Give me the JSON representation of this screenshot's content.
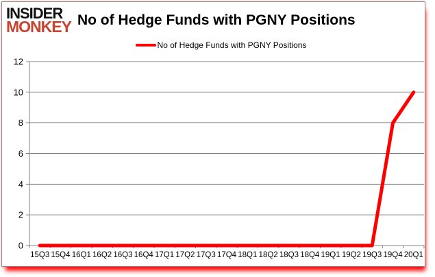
{
  "brand": {
    "line1": "INSIDER",
    "line2": "MONKEY",
    "line1_color": "#111111",
    "line2_color": "#c8432f"
  },
  "header": {
    "title": "No of Hedge Funds with PGNY Positions"
  },
  "legend": {
    "label": "No of Hedge Funds with PGNY Positions",
    "line_color": "#ff0000"
  },
  "chart_data": {
    "type": "line",
    "title": "No of Hedge Funds with PGNY Positions",
    "categories": [
      "15Q3",
      "15Q4",
      "16Q1",
      "16Q2",
      "16Q3",
      "16Q4",
      "17Q1",
      "17Q2",
      "17Q3",
      "17Q4",
      "18Q1",
      "18Q2",
      "18Q3",
      "18Q4",
      "19Q1",
      "19Q2",
      "19Q3",
      "19Q4",
      "20Q1"
    ],
    "series": [
      {
        "name": "No of Hedge Funds with PGNY Positions",
        "color": "#ff0000",
        "values": [
          0,
          0,
          0,
          0,
          0,
          0,
          0,
          0,
          0,
          0,
          0,
          0,
          0,
          0,
          0,
          0,
          0,
          8,
          10
        ]
      }
    ],
    "xlabel": "",
    "ylabel": "",
    "ylim": [
      0,
      12
    ],
    "ytick_step": 2,
    "yticks": [
      0,
      2,
      4,
      6,
      8,
      10,
      12
    ],
    "grid": true,
    "legend_position": "top-center",
    "gridline_color": "#808080",
    "axis_color": "#808080",
    "tick_label_color": "#000000",
    "line_width": 5
  }
}
